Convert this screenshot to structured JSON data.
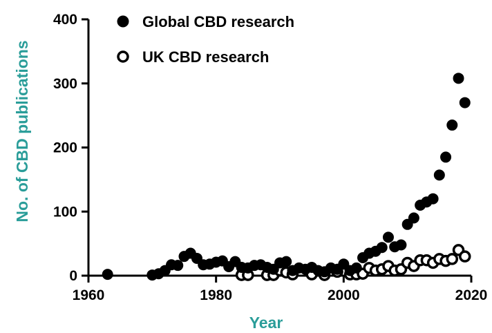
{
  "chart_data": {
    "type": "scatter",
    "xlabel": "Year",
    "ylabel": "No. of CBD publications",
    "xlim": [
      1960,
      2020
    ],
    "ylim": [
      0,
      400
    ],
    "x_ticks": [
      1960,
      1980,
      2000,
      2020
    ],
    "y_ticks": [
      0,
      100,
      200,
      300,
      400
    ],
    "grid": false,
    "legend_position": "top-left",
    "colors": {
      "axis_title": "#2a9d99",
      "marker": "#000000",
      "axis": "#000000"
    },
    "series": [
      {
        "name": "Global CBD research",
        "marker": "filled-circle",
        "x": [
          1963,
          1970,
          1971,
          1972,
          1973,
          1974,
          1975,
          1976,
          1977,
          1978,
          1979,
          1980,
          1981,
          1982,
          1983,
          1984,
          1985,
          1986,
          1987,
          1988,
          1989,
          1990,
          1991,
          1992,
          1993,
          1994,
          1995,
          1996,
          1997,
          1998,
          1999,
          2000,
          2001,
          2002,
          2003,
          2004,
          2005,
          2006,
          2007,
          2008,
          2009,
          2010,
          2011,
          2012,
          2013,
          2014,
          2015,
          2016,
          2017,
          2018,
          2019
        ],
        "y": [
          2,
          1,
          3,
          8,
          17,
          16,
          30,
          35,
          27,
          17,
          18,
          21,
          23,
          14,
          22,
          13,
          12,
          16,
          17,
          13,
          10,
          20,
          22,
          8,
          12,
          10,
          13,
          8,
          6,
          12,
          10,
          18,
          8,
          12,
          28,
          35,
          38,
          44,
          60,
          45,
          48,
          80,
          90,
          110,
          115,
          120,
          157,
          185,
          235,
          308,
          270
        ]
      },
      {
        "name": "UK CBD research",
        "marker": "open-circle",
        "x": [
          1984,
          1985,
          1988,
          1989,
          1990,
          1991,
          1992,
          1995,
          1997,
          1999,
          2001,
          2002,
          2003,
          2004,
          2005,
          2006,
          2007,
          2008,
          2009,
          2010,
          2011,
          2012,
          2013,
          2014,
          2015,
          2016,
          2017,
          2018,
          2019
        ],
        "y": [
          1,
          1,
          1,
          1,
          8,
          5,
          2,
          2,
          1,
          6,
          2,
          2,
          3,
          12,
          8,
          10,
          15,
          8,
          10,
          20,
          15,
          24,
          24,
          20,
          26,
          23,
          26,
          40,
          30
        ]
      }
    ]
  }
}
